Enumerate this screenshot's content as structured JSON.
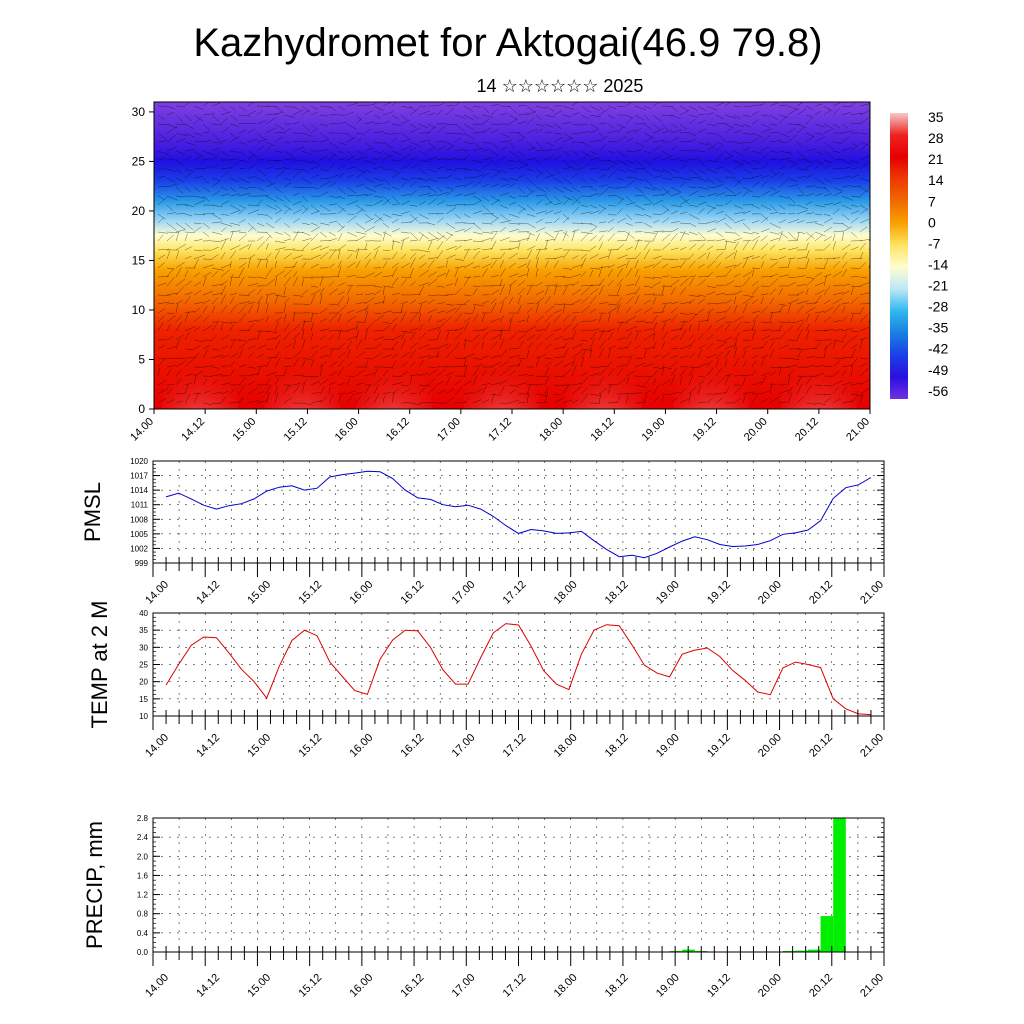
{
  "header": {
    "title": "Kazhydromet for Aktogai(46.9 79.8)",
    "subtitle": "14 ☆☆☆☆☆☆ 2025"
  },
  "colors": {
    "pmsl_line": "#0000cc",
    "temp_line": "#dd0000",
    "precip_bar": "#00ee00",
    "grid": "#000000"
  },
  "chart_data": [
    {
      "id": "vertical_section",
      "type": "heatmap",
      "title": "",
      "xlabel": "",
      "ylabel": "",
      "ylim": [
        0,
        31
      ],
      "yticks": [
        0,
        5,
        10,
        15,
        20,
        25,
        30
      ],
      "xticks": [
        "14.00",
        "14.12",
        "15.00",
        "15.12",
        "16.00",
        "16.12",
        "17.00",
        "17.12",
        "18.00",
        "18.12",
        "19.00",
        "19.12",
        "20.00",
        "20.12",
        "21.00"
      ],
      "colorbar": {
        "labels": [
          "35",
          "28",
          "21",
          "14",
          "7",
          "0",
          "-7",
          "-14",
          "-21",
          "-28",
          "-35",
          "-42",
          "-49",
          "-56"
        ],
        "colors": [
          "#f5c9c9",
          "#ee2222",
          "#e60000",
          "#ee3a00",
          "#f06a00",
          "#f9a000",
          "#fde460",
          "#fffdd0",
          "#bde8f5",
          "#30b8ee",
          "#1a80e0",
          "#1a40e8",
          "#2a10e0",
          "#7030e0"
        ]
      },
      "wind_vectors": true,
      "height_bands": [
        {
          "level": 0,
          "color": "#e60000"
        },
        {
          "level": 8,
          "color": "#ee2200"
        },
        {
          "level": 11,
          "color": "#f26a00"
        },
        {
          "level": 14,
          "color": "#f9a000"
        },
        {
          "level": 16,
          "color": "#fde460"
        },
        {
          "level": 17.5,
          "color": "#fffdd0"
        },
        {
          "level": 19,
          "color": "#9fd8f5"
        },
        {
          "level": 21,
          "color": "#2a9ae8"
        },
        {
          "level": 23,
          "color": "#1a40e8"
        },
        {
          "level": 25,
          "color": "#2010e0"
        },
        {
          "level": 27,
          "color": "#4a20e0"
        },
        {
          "level": 31,
          "color": "#8040e0"
        }
      ],
      "warm_spots_x": [
        0.9,
        2.9,
        4.7,
        6.8,
        8.8,
        10.9,
        13.0
      ]
    },
    {
      "id": "pmsl",
      "type": "line",
      "ylabel": "PMSL",
      "ylim": [
        999,
        1020
      ],
      "yticks": [
        999,
        1002,
        1005,
        1008,
        1011,
        1014,
        1017,
        1020
      ],
      "xticks": [
        "14.00",
        "14.12",
        "15.00",
        "15.12",
        "16.00",
        "16.12",
        "17.00",
        "17.12",
        "18.00",
        "18.12",
        "19.00",
        "19.12",
        "20.00",
        "20.12",
        "21.00"
      ],
      "series": [
        {
          "values": [
            1012.6,
            1013.4,
            1012.2,
            1010.9,
            1010.1,
            1010.8,
            1011.2,
            1012.2,
            1013.8,
            1014.6,
            1014.9,
            1014.0,
            1014.4,
            1016.7,
            1017.2,
            1017.5,
            1017.9,
            1017.8,
            1016.4,
            1014.0,
            1012.4,
            1012.1,
            1011.0,
            1010.6,
            1010.9,
            1010.1,
            1008.6,
            1006.7,
            1005.1,
            1005.9,
            1005.6,
            1005.1,
            1005.2,
            1005.5,
            1003.6,
            1001.8,
            1000.3,
            1000.6,
            1000.1,
            1001.0,
            1002.3,
            1003.5,
            1004.4,
            1003.8,
            1002.8,
            1002.4,
            1002.5,
            1002.8,
            1003.6,
            1004.9,
            1005.2,
            1005.8,
            1007.7,
            1012.3,
            1014.5,
            1015.1,
            1016.6
          ]
        }
      ]
    },
    {
      "id": "temp",
      "type": "line",
      "ylabel": "TEMP at 2 M",
      "ylim": [
        10,
        40
      ],
      "yticks": [
        10,
        15,
        20,
        25,
        30,
        35,
        40
      ],
      "xticks": [
        "14.00",
        "14.12",
        "15.00",
        "15.12",
        "16.00",
        "16.12",
        "17.00",
        "17.12",
        "18.00",
        "18.12",
        "19.00",
        "19.12",
        "20.00",
        "20.12",
        "21.00"
      ],
      "series": [
        {
          "values": [
            19.0,
            25.0,
            30.6,
            33.0,
            32.8,
            28.4,
            23.6,
            20.0,
            15.2,
            24.5,
            32.0,
            35.0,
            33.4,
            25.8,
            21.5,
            17.4,
            16.3,
            26.5,
            32.1,
            35.0,
            34.8,
            30.0,
            23.4,
            19.3,
            19.3,
            27.0,
            34.2,
            36.9,
            36.5,
            30.3,
            23.2,
            19.3,
            17.7,
            28.0,
            35.0,
            36.6,
            36.3,
            30.8,
            24.8,
            22.5,
            21.4,
            28.0,
            29.2,
            29.8,
            27.3,
            23.3,
            20.4,
            17.0,
            16.2,
            24.0,
            25.7,
            25.0,
            24.1,
            15.0,
            12.1,
            10.6,
            10.4
          ]
        }
      ]
    },
    {
      "id": "precip",
      "type": "bar",
      "ylabel": "PRECIP, mm",
      "ylim": [
        0,
        2.8
      ],
      "yticks": [
        "0.0",
        "0.4",
        "0.8",
        "1.2",
        "1.6",
        "2.0",
        "2.4",
        "2.8"
      ],
      "xticks": [
        "14.00",
        "14.12",
        "15.00",
        "15.12",
        "16.00",
        "16.12",
        "17.00",
        "17.12",
        "18.00",
        "18.12",
        "19.00",
        "19.12",
        "20.00",
        "20.12",
        "21.00"
      ],
      "series": [
        {
          "values": [
            0,
            0,
            0,
            0,
            0,
            0,
            0,
            0,
            0,
            0,
            0,
            0,
            0,
            0,
            0,
            0,
            0,
            0,
            0,
            0,
            0,
            0,
            0,
            0,
            0,
            0,
            0,
            0,
            0,
            0,
            0,
            0,
            0,
            0,
            0,
            0,
            0,
            0,
            0,
            0,
            0.02,
            0.05,
            0.02,
            0,
            0,
            0,
            0,
            0,
            0,
            0.02,
            0.03,
            0.05,
            0.75,
            2.8,
            0,
            0
          ]
        }
      ]
    }
  ]
}
